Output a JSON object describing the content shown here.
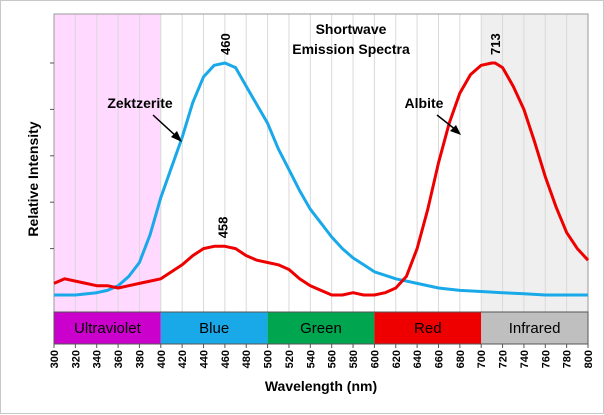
{
  "chart_data": {
    "type": "line",
    "title": "Shortwave",
    "subtitle": "Emission Spectra",
    "xlabel": "Wavelength (nm)",
    "ylabel": "Relative Intensity",
    "xlim": [
      300,
      800
    ],
    "ylim": [
      0,
      1.12
    ],
    "x_ticks": [
      300,
      320,
      340,
      360,
      380,
      400,
      420,
      440,
      460,
      480,
      500,
      520,
      540,
      560,
      580,
      600,
      620,
      640,
      660,
      680,
      700,
      720,
      740,
      760,
      780,
      800
    ],
    "x_tick_labels": [
      "300",
      "320",
      "340",
      "360",
      "380",
      "400",
      "420",
      "440",
      "460",
      "480",
      "500",
      "520",
      "540",
      "560",
      "580",
      "600",
      "620",
      "640",
      "660",
      "680",
      "700",
      "720",
      "740",
      "760",
      "780",
      "800"
    ],
    "y_ticks": [
      0.2,
      0.4,
      0.6,
      0.8,
      1.0
    ],
    "grid": "vertical",
    "regions": [
      {
        "label": "Ultraviolet",
        "from": 300,
        "to": 400,
        "color": "#cc00cc",
        "shade": "#ffd9ff"
      },
      {
        "label": "Blue",
        "from": 400,
        "to": 500,
        "color": "#1aa9e8",
        "shade": ""
      },
      {
        "label": "Green",
        "from": 500,
        "to": 600,
        "color": "#00a550",
        "shade": ""
      },
      {
        "label": "Red",
        "from": 600,
        "to": 700,
        "color": "#ee0000",
        "shade": ""
      },
      {
        "label": "Infrared",
        "from": 700,
        "to": 800,
        "color": "#bfbfbf",
        "shade": "#efefef"
      }
    ],
    "series": [
      {
        "name": "Zektzerite",
        "color": "#1aa9e8",
        "x": [
          300,
          320,
          340,
          350,
          360,
          370,
          380,
          390,
          400,
          410,
          420,
          430,
          440,
          450,
          460,
          470,
          480,
          490,
          500,
          510,
          520,
          530,
          540,
          550,
          560,
          570,
          580,
          590,
          600,
          620,
          640,
          660,
          680,
          700,
          720,
          740,
          760,
          780,
          800
        ],
        "values": [
          0.0,
          0.0,
          0.01,
          0.02,
          0.04,
          0.08,
          0.14,
          0.26,
          0.42,
          0.55,
          0.68,
          0.83,
          0.94,
          0.99,
          1.0,
          0.98,
          0.9,
          0.82,
          0.74,
          0.63,
          0.54,
          0.45,
          0.37,
          0.31,
          0.25,
          0.2,
          0.16,
          0.13,
          0.1,
          0.07,
          0.05,
          0.03,
          0.02,
          0.015,
          0.01,
          0.005,
          0.0,
          0.0,
          0.0
        ],
        "peak_label": "460",
        "peak_x": 460,
        "annotation": "Zektzerite"
      },
      {
        "name": "Albite",
        "color": "#ee0000",
        "x": [
          300,
          310,
          320,
          330,
          340,
          350,
          360,
          370,
          380,
          390,
          400,
          410,
          420,
          430,
          440,
          450,
          460,
          470,
          480,
          490,
          500,
          510,
          520,
          530,
          540,
          550,
          560,
          570,
          580,
          590,
          600,
          610,
          620,
          630,
          640,
          650,
          660,
          670,
          680,
          690,
          700,
          710,
          713,
          720,
          730,
          740,
          750,
          760,
          770,
          780,
          790,
          800
        ],
        "values": [
          0.05,
          0.07,
          0.06,
          0.05,
          0.04,
          0.04,
          0.03,
          0.04,
          0.05,
          0.06,
          0.07,
          0.1,
          0.13,
          0.17,
          0.2,
          0.21,
          0.21,
          0.2,
          0.17,
          0.15,
          0.14,
          0.13,
          0.11,
          0.07,
          0.04,
          0.02,
          0.0,
          0.0,
          0.01,
          0.0,
          0.0,
          0.01,
          0.03,
          0.08,
          0.2,
          0.37,
          0.57,
          0.74,
          0.87,
          0.95,
          0.99,
          1.0,
          1.0,
          0.98,
          0.9,
          0.8,
          0.66,
          0.51,
          0.38,
          0.27,
          0.2,
          0.15
        ],
        "peak_label": "458",
        "peak_x": 458,
        "second_peak_label": "713",
        "second_peak_x": 713,
        "annotation": "Albite"
      }
    ]
  }
}
